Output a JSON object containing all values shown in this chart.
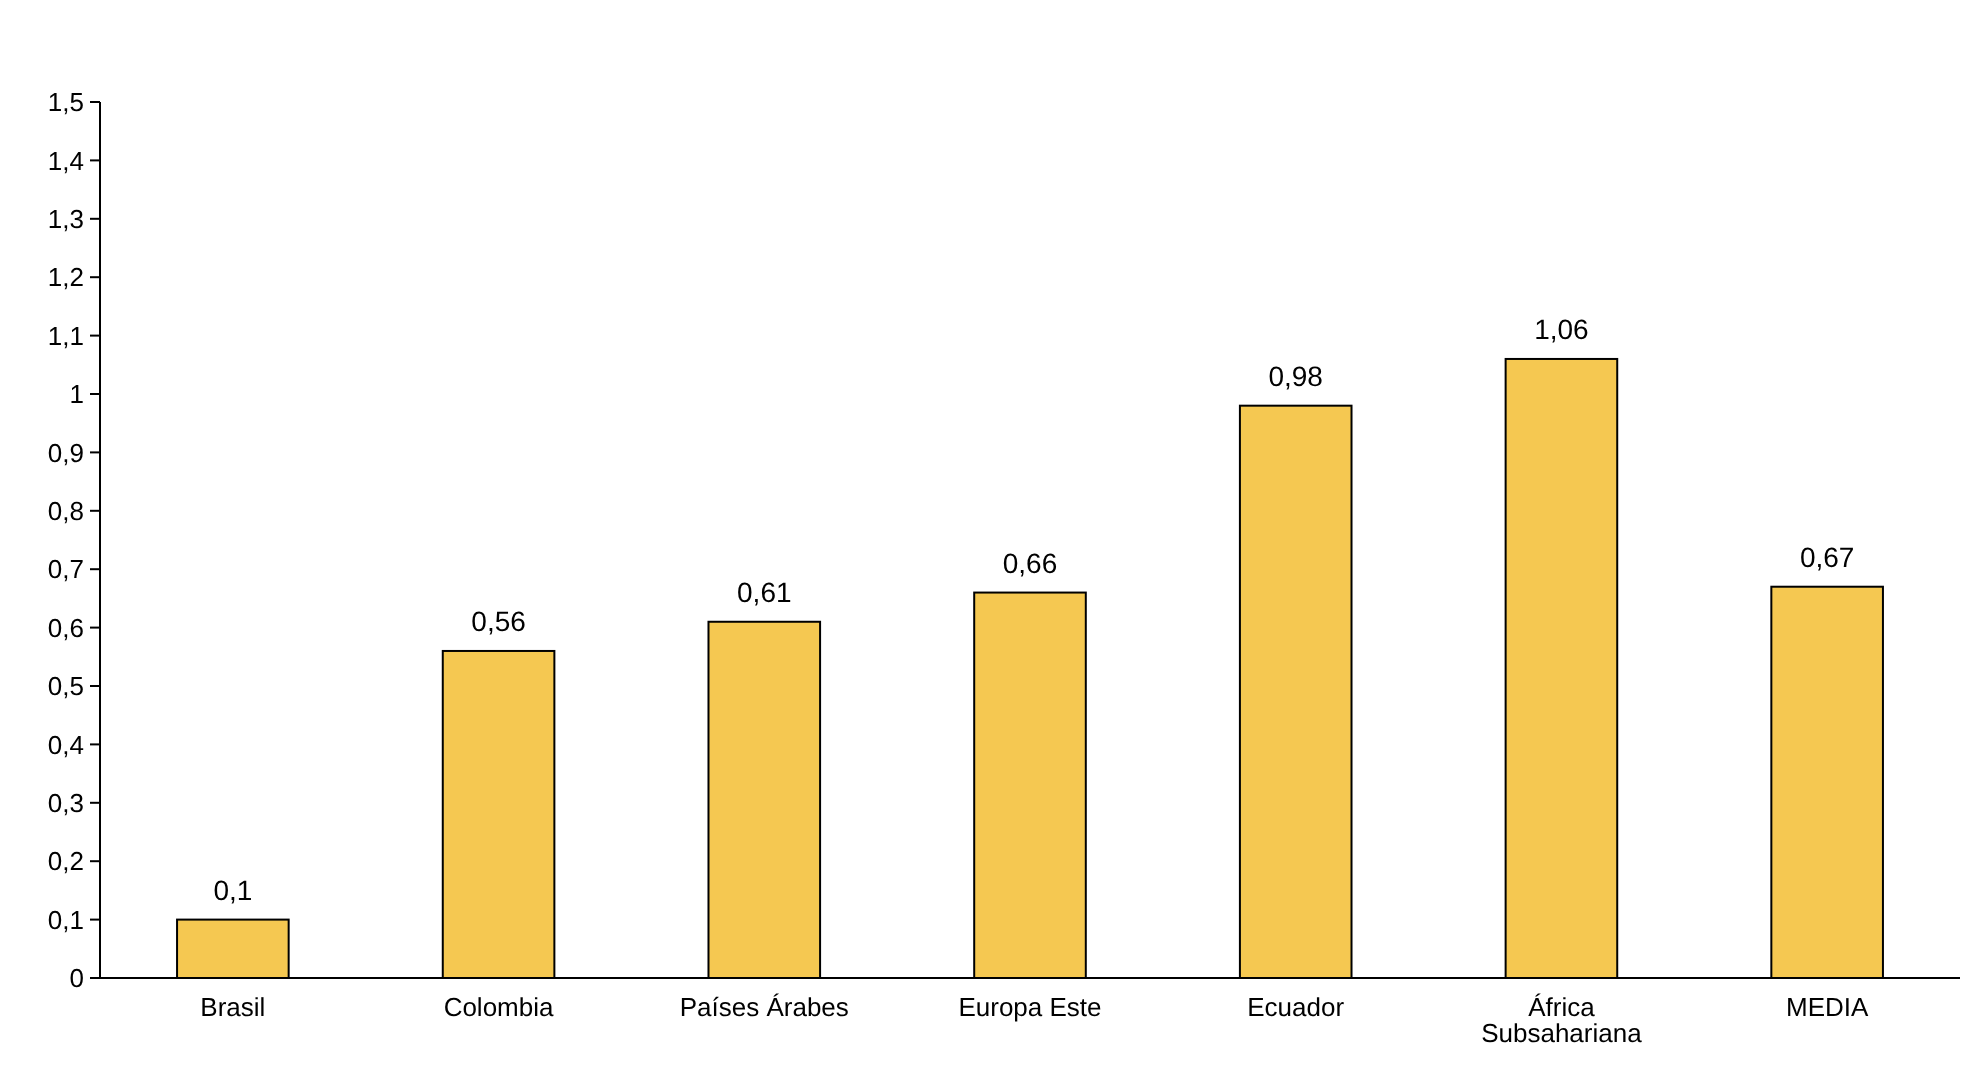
{
  "chart_data": {
    "type": "bar",
    "categories": [
      "Brasil",
      "Colombia",
      "Países Árabes",
      "Europa Este",
      "Ecuador",
      "África Subsahariana",
      "MEDIA"
    ],
    "values": [
      0.1,
      0.56,
      0.61,
      0.66,
      0.98,
      1.06,
      0.67
    ],
    "value_labels": [
      "0,1",
      "0,56",
      "0,61",
      "0,66",
      "0,98",
      "1,06",
      "0,67"
    ],
    "color": "#f5c851",
    "ylim": [
      0,
      1.5
    ],
    "yticks": [
      0,
      {
        "value": 0.1,
        "label": "0,1"
      },
      {
        "value": 0.2,
        "label": "0,2"
      },
      {
        "value": 0.3,
        "label": "0,3"
      },
      {
        "value": 0.4,
        "label": "0,4"
      },
      {
        "value": 0.5,
        "label": "0,5"
      },
      {
        "value": 0.6,
        "label": "0,6"
      },
      {
        "value": 0.7,
        "label": "0,7"
      },
      {
        "value": 0.8,
        "label": "0,8"
      },
      {
        "value": 0.9,
        "label": "0,9"
      },
      1,
      {
        "value": 1.1,
        "label": "1,1"
      },
      {
        "value": 1.2,
        "label": "1,2"
      },
      {
        "value": 1.3,
        "label": "1,3"
      },
      {
        "value": 1.4,
        "label": "1,4"
      },
      {
        "value": 1.5,
        "label": "1,5"
      }
    ],
    "grid": false
  }
}
